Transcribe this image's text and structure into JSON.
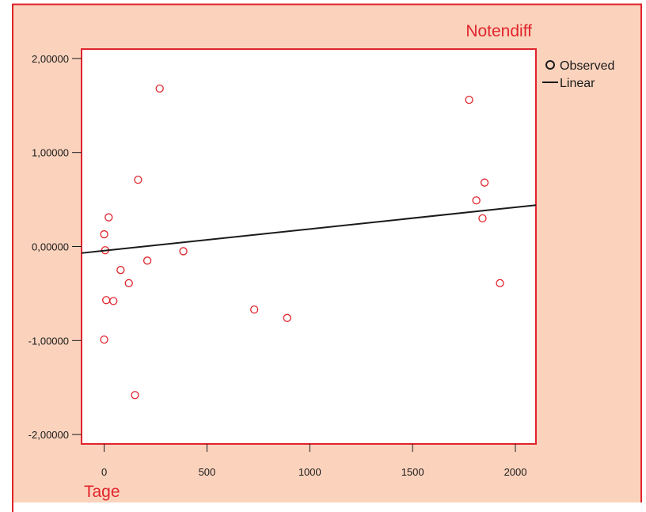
{
  "chart_data": {
    "type": "scatter",
    "title": "Notendiff",
    "xlabel": "Tage",
    "ylabel": "",
    "xlim": [
      -110,
      2100
    ],
    "ylim": [
      -2.1,
      2.1
    ],
    "x_ticks": [
      0,
      500,
      1000,
      1500,
      2000
    ],
    "y_ticks": [
      -2,
      -1,
      0,
      1,
      2
    ],
    "x_tick_labels": [
      "0",
      "500",
      "1000",
      "1500",
      "2000"
    ],
    "y_tick_labels": [
      "-2,00000",
      "-1,00000",
      "0,00000",
      "1,00000",
      "2,00000"
    ],
    "legend": {
      "position": "top-right",
      "entries": [
        {
          "label": "Observed",
          "kind": "marker"
        },
        {
          "label": "Linear",
          "kind": "line"
        }
      ]
    },
    "series": [
      {
        "name": "Observed",
        "type": "scatter",
        "color": "#e0242c",
        "points": [
          {
            "x": 0,
            "y": 0.13
          },
          {
            "x": 5,
            "y": -0.04
          },
          {
            "x": 10,
            "y": -0.57
          },
          {
            "x": 0,
            "y": -0.99
          },
          {
            "x": 22,
            "y": 0.31
          },
          {
            "x": 45,
            "y": -0.58
          },
          {
            "x": 80,
            "y": -0.25
          },
          {
            "x": 120,
            "y": -0.39
          },
          {
            "x": 150,
            "y": -1.58
          },
          {
            "x": 165,
            "y": 0.71
          },
          {
            "x": 210,
            "y": -0.15
          },
          {
            "x": 270,
            "y": 1.68
          },
          {
            "x": 385,
            "y": -0.05
          },
          {
            "x": 730,
            "y": -0.67
          },
          {
            "x": 890,
            "y": -0.76
          },
          {
            "x": 1775,
            "y": 1.56
          },
          {
            "x": 1810,
            "y": 0.49
          },
          {
            "x": 1840,
            "y": 0.3
          },
          {
            "x": 1850,
            "y": 0.68
          },
          {
            "x": 1925,
            "y": -0.39
          }
        ]
      },
      {
        "name": "Linear",
        "type": "line",
        "color": "#1a1a1a",
        "points": [
          {
            "x": -110,
            "y": -0.07
          },
          {
            "x": 2100,
            "y": 0.44
          }
        ]
      }
    ],
    "grid": false,
    "colors": {
      "panel_background": "#fbd3bd",
      "plot_background": "#ffffff",
      "frame": "#e0242c",
      "title_text": "#e0242c",
      "axis_text": "#1a1a1a"
    }
  }
}
